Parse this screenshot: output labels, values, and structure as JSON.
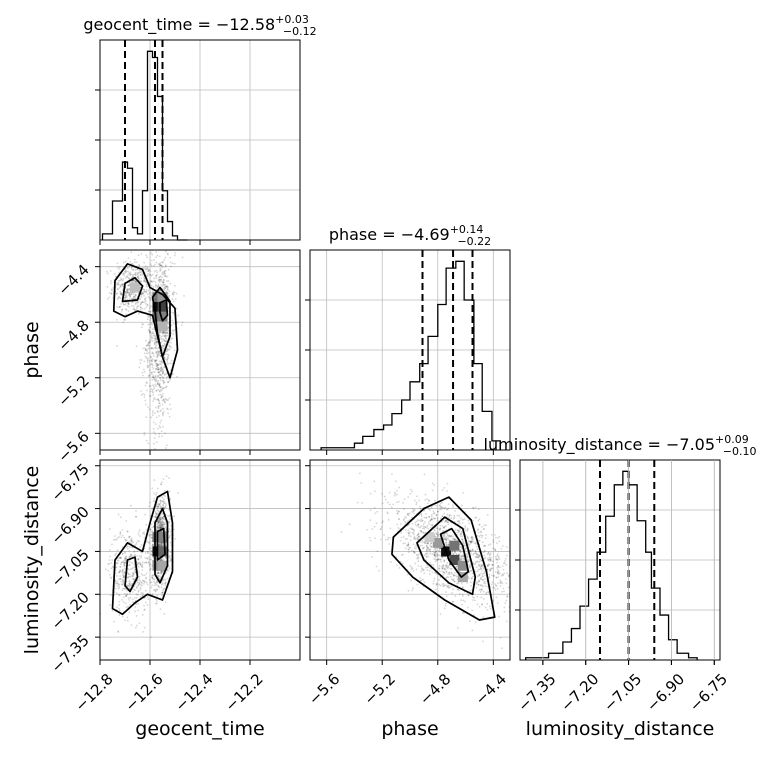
{
  "chart_data": {
    "type": "corner",
    "parameters": [
      "geocent_time",
      "phase",
      "luminosity_distance"
    ],
    "panel_titles": [
      {
        "param": "geocent_time",
        "prefix": "geocent_time = ",
        "median": "−12.58",
        "upper": "+0.03",
        "lower": "−0.12"
      },
      {
        "param": "phase",
        "prefix": "phase = ",
        "median": "−4.69",
        "upper": "+0.14",
        "lower": "−0.22"
      },
      {
        "param": "luminosity_distance",
        "prefix": "luminosity_distance = ",
        "median": "−7.05",
        "upper": "+0.09",
        "lower": "−0.10"
      }
    ],
    "axes": {
      "geocent_time": {
        "range": [
          -12.8,
          -12.0
        ],
        "ticks": [
          -12.8,
          -12.6,
          -12.4,
          -12.2
        ],
        "tick_labels": [
          "−12.8",
          "−12.6",
          "−12.4",
          "−12.2"
        ]
      },
      "phase": {
        "range": [
          -5.72,
          -4.28
        ],
        "ticks": [
          -5.6,
          -5.2,
          -4.8,
          -4.4
        ],
        "tick_labels": [
          "−5.6",
          "−5.2",
          "−4.8",
          "−4.4"
        ]
      },
      "luminosity_distance": {
        "range": [
          -7.43,
          -6.73
        ],
        "ticks": [
          -7.35,
          -7.2,
          -7.05,
          -6.9,
          -6.75
        ],
        "tick_labels": [
          "−7.35",
          "−7.20",
          "−7.05",
          "−6.90",
          "−6.75"
        ]
      }
    },
    "quantiles": {
      "geocent_time": [
        -12.7,
        -12.58,
        -12.55
      ],
      "phase": [
        -4.91,
        -4.69,
        -4.55
      ],
      "luminosity_distance": [
        -7.15,
        -7.05,
        -6.96
      ]
    },
    "histograms": {
      "geocent_time": {
        "edges": [
          -12.79,
          -12.75,
          -12.71,
          -12.69,
          -12.67,
          -12.65,
          -12.63,
          -12.61,
          -12.59,
          -12.57,
          -12.55,
          -12.53,
          -12.51,
          -12.49,
          -12.45
        ],
        "counts": [
          0.15,
          0.95,
          1.9,
          1.75,
          0.3,
          0.15,
          1.2,
          4.6,
          4.45,
          3.5,
          1.2,
          0.45,
          0.1,
          0
        ]
      },
      "phase": {
        "edges": [
          -5.64,
          -5.4,
          -5.34,
          -5.26,
          -5.19,
          -5.13,
          -5.06,
          -5.0,
          -4.93,
          -4.87,
          -4.8,
          -4.74,
          -4.67,
          -4.61,
          -4.54,
          -4.48,
          -4.41,
          -4.35
        ],
        "counts": [
          0.05,
          0.15,
          0.3,
          0.45,
          0.55,
          0.8,
          1.1,
          1.5,
          1.9,
          2.5,
          3.2,
          4.0,
          4.15,
          3.3,
          1.9,
          0.85,
          0.2
        ]
      },
      "luminosity_distance": {
        "edges": [
          -7.41,
          -7.33,
          -7.28,
          -7.25,
          -7.22,
          -7.19,
          -7.16,
          -7.13,
          -7.1,
          -7.07,
          -7.05,
          -7.02,
          -6.99,
          -6.97,
          -6.94,
          -6.91,
          -6.88,
          -6.84,
          -6.81
        ],
        "counts": [
          0.05,
          0.15,
          0.4,
          0.7,
          1.2,
          1.8,
          2.4,
          3.2,
          3.9,
          4.2,
          3.9,
          3.1,
          2.4,
          1.6,
          1.0,
          0.45,
          0.15,
          0.05
        ]
      }
    },
    "pairs": [
      {
        "x": "geocent_time",
        "y": "phase",
        "clusters": [
          {
            "mx": -12.67,
            "my": -4.55,
            "sx": 0.04,
            "sy": 0.1,
            "rho": 0.0,
            "n": 480
          },
          {
            "mx": -12.56,
            "my": -4.9,
            "sx": 0.03,
            "sy": 0.32,
            "rho": 0.15,
            "n": 950
          }
        ],
        "contours": [
          [
            [
              -12.745,
              -4.72
            ],
            [
              -12.74,
              -4.5
            ],
            [
              -12.69,
              -4.38
            ],
            [
              -12.63,
              -4.42
            ],
            [
              -12.6,
              -4.55
            ],
            [
              -12.55,
              -4.6
            ],
            [
              -12.5,
              -4.7
            ],
            [
              -12.49,
              -5.0
            ],
            [
              -12.52,
              -5.2
            ],
            [
              -12.55,
              -5.05
            ],
            [
              -12.59,
              -4.75
            ],
            [
              -12.65,
              -4.72
            ],
            [
              -12.7,
              -4.76
            ]
          ],
          [
            [
              -12.71,
              -4.65
            ],
            [
              -12.7,
              -4.52
            ],
            [
              -12.66,
              -4.48
            ],
            [
              -12.63,
              -4.54
            ],
            [
              -12.65,
              -4.64
            ]
          ],
          [
            [
              -12.59,
              -4.62
            ],
            [
              -12.56,
              -4.55
            ],
            [
              -12.52,
              -4.65
            ],
            [
              -12.52,
              -4.9
            ],
            [
              -12.55,
              -5.05
            ],
            [
              -12.57,
              -4.88
            ],
            [
              -12.58,
              -4.72
            ]
          ],
          [
            [
              -12.56,
              -4.66
            ],
            [
              -12.535,
              -4.64
            ],
            [
              -12.53,
              -4.75
            ],
            [
              -12.55,
              -4.79
            ],
            [
              -12.56,
              -4.73
            ]
          ]
        ],
        "dense": [
          {
            "x": -12.57,
            "y": -4.62,
            "v": 0.55
          },
          {
            "x": -12.55,
            "y": -4.62,
            "v": 0.4
          },
          {
            "x": -12.57,
            "y": -4.69,
            "v": 0.95
          },
          {
            "x": -12.55,
            "y": -4.69,
            "v": 0.75
          },
          {
            "x": -12.57,
            "y": -4.76,
            "v": 0.6
          },
          {
            "x": -12.55,
            "y": -4.76,
            "v": 0.5
          },
          {
            "x": -12.55,
            "y": -4.83,
            "v": 0.3
          },
          {
            "x": -12.66,
            "y": -4.55,
            "v": 0.25
          }
        ]
      },
      {
        "x": "geocent_time",
        "y": "luminosity_distance",
        "clusters": [
          {
            "mx": -12.68,
            "my": -7.12,
            "sx": 0.04,
            "sy": 0.08,
            "rho": 0.0,
            "n": 480
          },
          {
            "mx": -12.56,
            "my": -7.02,
            "sx": 0.02,
            "sy": 0.08,
            "rho": 0.0,
            "n": 950
          }
        ],
        "contours": [
          [
            [
              -12.75,
              -7.25
            ],
            [
              -12.74,
              -7.08
            ],
            [
              -12.69,
              -7.02
            ],
            [
              -12.63,
              -7.05
            ],
            [
              -12.6,
              -6.95
            ],
            [
              -12.57,
              -6.86
            ],
            [
              -12.53,
              -6.84
            ],
            [
              -12.51,
              -6.95
            ],
            [
              -12.51,
              -7.12
            ],
            [
              -12.55,
              -7.22
            ],
            [
              -12.61,
              -7.2
            ],
            [
              -12.66,
              -7.23
            ],
            [
              -12.71,
              -7.27
            ]
          ],
          [
            [
              -12.7,
              -7.17
            ],
            [
              -12.69,
              -7.08
            ],
            [
              -12.66,
              -7.07
            ],
            [
              -12.65,
              -7.14
            ],
            [
              -12.68,
              -7.19
            ]
          ],
          [
            [
              -12.58,
              -7.13
            ],
            [
              -12.58,
              -6.95
            ],
            [
              -12.55,
              -6.9
            ],
            [
              -12.53,
              -6.95
            ],
            [
              -12.53,
              -7.1
            ],
            [
              -12.56,
              -7.16
            ]
          ],
          [
            [
              -12.57,
              -7.08
            ],
            [
              -12.57,
              -6.98
            ],
            [
              -12.545,
              -6.97
            ],
            [
              -12.54,
              -7.06
            ]
          ]
        ],
        "dense": [
          {
            "x": -12.57,
            "y": -7.05,
            "v": 0.95
          },
          {
            "x": -12.57,
            "y": -7.0,
            "v": 0.55
          },
          {
            "x": -12.55,
            "y": -7.0,
            "v": 0.5
          },
          {
            "x": -12.55,
            "y": -7.05,
            "v": 0.6
          },
          {
            "x": -12.57,
            "y": -7.1,
            "v": 0.45
          },
          {
            "x": -12.55,
            "y": -7.1,
            "v": 0.35
          }
        ]
      },
      {
        "x": "phase",
        "y": "luminosity_distance",
        "clusters": [
          {
            "mx": -4.7,
            "my": -7.05,
            "sx": 0.22,
            "sy": 0.09,
            "rho": -0.55,
            "n": 1500
          }
        ],
        "contours": [
          [
            [
              -5.12,
              -7.0
            ],
            [
              -4.9,
              -6.9
            ],
            [
              -4.72,
              -6.86
            ],
            [
              -4.56,
              -6.94
            ],
            [
              -4.45,
              -7.12
            ],
            [
              -4.39,
              -7.28
            ],
            [
              -4.5,
              -7.29
            ],
            [
              -4.75,
              -7.22
            ],
            [
              -4.98,
              -7.14
            ],
            [
              -5.13,
              -7.06
            ]
          ],
          [
            [
              -4.95,
              -7.02
            ],
            [
              -4.75,
              -6.93
            ],
            [
              -4.62,
              -6.97
            ],
            [
              -4.53,
              -7.14
            ],
            [
              -4.55,
              -7.2
            ],
            [
              -4.72,
              -7.16
            ],
            [
              -4.9,
              -7.08
            ]
          ],
          [
            [
              -4.78,
              -6.99
            ],
            [
              -4.7,
              -6.97
            ],
            [
              -4.62,
              -7.03
            ],
            [
              -4.58,
              -7.12
            ],
            [
              -4.63,
              -7.14
            ],
            [
              -4.72,
              -7.08
            ]
          ]
        ],
        "dense": [
          {
            "x": -4.74,
            "y": -7.05,
            "v": 0.95
          },
          {
            "x": -4.68,
            "y": -7.08,
            "v": 0.7
          },
          {
            "x": -4.68,
            "y": -7.03,
            "v": 0.55
          },
          {
            "x": -4.62,
            "y": -7.1,
            "v": 0.45
          },
          {
            "x": -4.8,
            "y": -7.02,
            "v": 0.4
          },
          {
            "x": -4.62,
            "y": -7.14,
            "v": 0.35
          },
          {
            "x": -4.86,
            "y": -7.0,
            "v": 0.2
          }
        ]
      }
    ],
    "grid": true
  }
}
